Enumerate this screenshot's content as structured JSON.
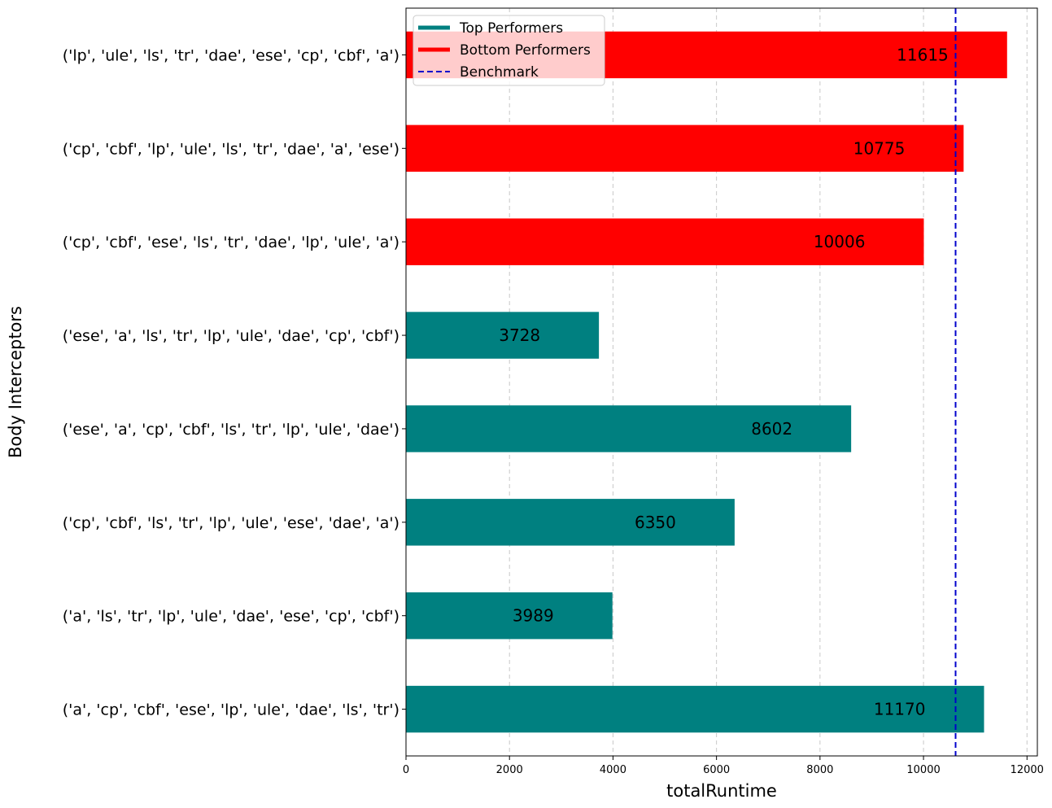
{
  "chart_data": {
    "type": "bar",
    "orientation": "horizontal",
    "xlabel": "totalRuntime",
    "ylabel": "Body Interceptors",
    "xlim": [
      0,
      12200
    ],
    "xticks": [
      0,
      2000,
      4000,
      6000,
      8000,
      10000,
      12000
    ],
    "grid": "x-dashed",
    "legend_placement": "top-left",
    "benchmark": 10620,
    "categories": [
      "('a', 'cp', 'cbf', 'ese', 'lp', 'ule', 'dae', 'ls', 'tr')",
      "('a', 'ls', 'tr', 'lp', 'ule', 'dae', 'ese', 'cp', 'cbf')",
      "('cp', 'cbf', 'ls', 'tr', 'lp', 'ule', 'ese', 'dae', 'a')",
      "('ese', 'a', 'cp', 'cbf', 'ls', 'tr', 'lp', 'ule', 'dae')",
      "('ese', 'a', 'ls', 'tr', 'lp', 'ule', 'dae', 'cp', 'cbf')",
      "('cp', 'cbf', 'ese', 'ls', 'tr', 'dae', 'lp', 'ule', 'a')",
      "('cp', 'cbf', 'lp', 'ule', 'ls', 'tr', 'dae', 'a', 'ese')",
      "('lp', 'ule', 'ls', 'tr', 'dae', 'ese', 'cp', 'cbf', 'a')"
    ],
    "values": [
      11170,
      3989,
      6350,
      8602,
      3728,
      10006,
      10775,
      11615
    ],
    "groups": [
      "top",
      "top",
      "top",
      "top",
      "top",
      "bottom",
      "bottom",
      "bottom"
    ],
    "colors": {
      "top": "#008080",
      "bottom": "#ff0000",
      "benchmark": "#0000cc"
    },
    "legend": [
      {
        "label": "Top Performers",
        "kind": "line",
        "color": "#008080"
      },
      {
        "label": "Bottom Performers",
        "kind": "line",
        "color": "#ff0000"
      },
      {
        "label": "Benchmark",
        "kind": "dashed",
        "color": "#0000cc"
      }
    ]
  }
}
